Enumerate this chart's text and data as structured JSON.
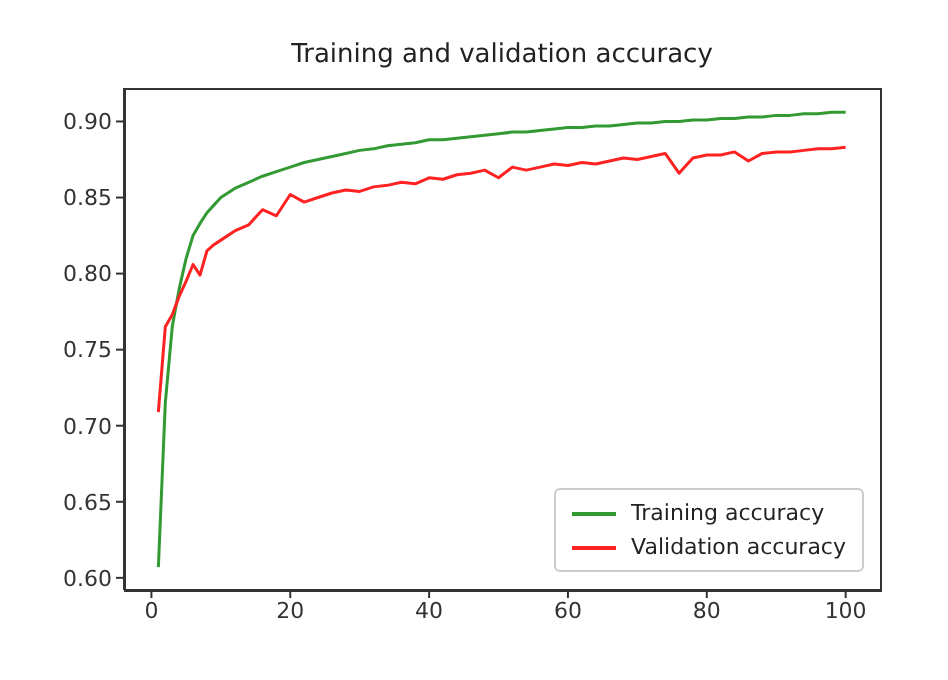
{
  "chart_data": {
    "type": "line",
    "title": "Training and validation accuracy",
    "x": [
      1,
      2,
      3,
      4,
      5,
      6,
      7,
      8,
      9,
      10,
      12,
      14,
      16,
      18,
      20,
      22,
      24,
      26,
      28,
      30,
      32,
      34,
      36,
      38,
      40,
      42,
      44,
      46,
      48,
      50,
      52,
      54,
      56,
      58,
      60,
      62,
      64,
      66,
      68,
      70,
      72,
      74,
      76,
      78,
      80,
      82,
      84,
      86,
      88,
      90,
      92,
      94,
      96,
      98,
      100
    ],
    "series": [
      {
        "name": "Training accuracy",
        "color": "#339933",
        "values": [
          0.607,
          0.715,
          0.765,
          0.79,
          0.81,
          0.825,
          0.833,
          0.84,
          0.845,
          0.85,
          0.856,
          0.86,
          0.864,
          0.867,
          0.87,
          0.873,
          0.875,
          0.877,
          0.879,
          0.881,
          0.882,
          0.884,
          0.885,
          0.886,
          0.888,
          0.888,
          0.889,
          0.89,
          0.891,
          0.892,
          0.893,
          0.893,
          0.894,
          0.895,
          0.896,
          0.896,
          0.897,
          0.897,
          0.898,
          0.899,
          0.899,
          0.9,
          0.9,
          0.901,
          0.901,
          0.902,
          0.902,
          0.903,
          0.903,
          0.904,
          0.904,
          0.905,
          0.905,
          0.906,
          0.906
        ]
      },
      {
        "name": "Validation accuracy",
        "color": "#ff2222",
        "values": [
          0.709,
          0.765,
          0.773,
          0.785,
          0.795,
          0.806,
          0.799,
          0.815,
          0.819,
          0.822,
          0.828,
          0.832,
          0.842,
          0.838,
          0.852,
          0.847,
          0.85,
          0.853,
          0.855,
          0.854,
          0.857,
          0.858,
          0.86,
          0.859,
          0.863,
          0.862,
          0.865,
          0.866,
          0.868,
          0.863,
          0.87,
          0.868,
          0.87,
          0.872,
          0.871,
          0.873,
          0.872,
          0.874,
          0.876,
          0.875,
          0.877,
          0.879,
          0.866,
          0.876,
          0.878,
          0.878,
          0.88,
          0.874,
          0.879,
          0.88,
          0.88,
          0.881,
          0.882,
          0.882,
          0.883
        ]
      }
    ],
    "xlim": [
      -3.95,
      104.95
    ],
    "xticks": [
      0,
      20,
      40,
      60,
      80,
      100
    ],
    "ylim": [
      0.592,
      0.922
    ],
    "yticks": [
      {
        "value": 0.6,
        "label": "0.60"
      },
      {
        "value": 0.65,
        "label": "0.65"
      },
      {
        "value": 0.7,
        "label": "0.70"
      },
      {
        "value": 0.75,
        "label": "0.75"
      },
      {
        "value": 0.8,
        "label": "0.80"
      },
      {
        "value": 0.85,
        "label": "0.85"
      },
      {
        "value": 0.9,
        "label": "0.90"
      }
    ],
    "grid": false,
    "legend": "bottom right",
    "marker": "none",
    "line_style": "solid"
  }
}
